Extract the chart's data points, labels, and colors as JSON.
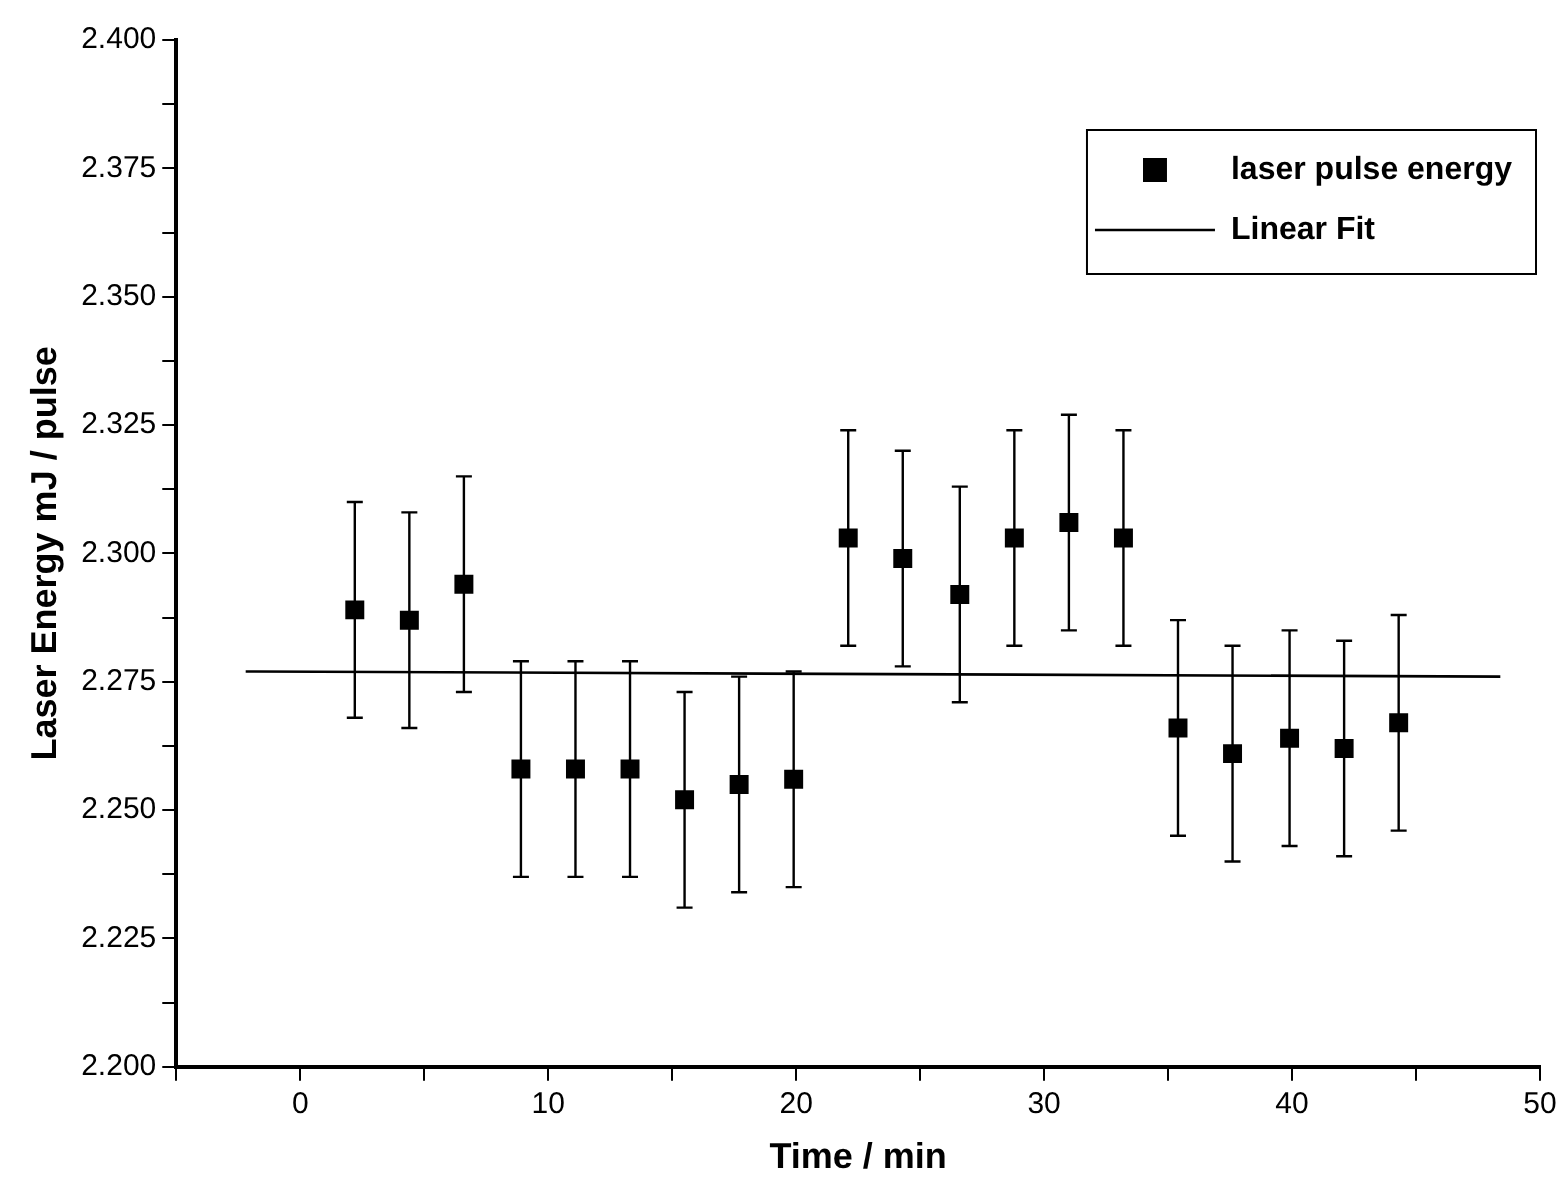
{
  "chart_data": {
    "type": "scatter",
    "xlabel": "Time / min",
    "ylabel": "Laser Energy mJ / pulse",
    "xlim": [
      -5,
      50
    ],
    "xticks": [
      {
        "value": -5,
        "label": null
      },
      0,
      {
        "value": 5,
        "label": null
      },
      10,
      {
        "value": 15,
        "label": null
      },
      20,
      {
        "value": 25,
        "label": null
      },
      30,
      {
        "value": 35,
        "label": null
      },
      40,
      {
        "value": 45,
        "label": null
      },
      50
    ],
    "ylim": [
      2.2,
      2.4
    ],
    "yticks": [
      {
        "value": 2.2,
        "label": "2.200"
      },
      {
        "value": 2.2125,
        "label": null
      },
      {
        "value": 2.225,
        "label": "2.225"
      },
      {
        "value": 2.2375,
        "label": null
      },
      {
        "value": 2.25,
        "label": "2.250"
      },
      {
        "value": 2.2625,
        "label": null
      },
      {
        "value": 2.275,
        "label": "2.275"
      },
      {
        "value": 2.2875,
        "label": null
      },
      {
        "value": 2.3,
        "label": "2.300"
      },
      {
        "value": 2.3125,
        "label": null
      },
      {
        "value": 2.325,
        "label": "2.325"
      },
      {
        "value": 2.3375,
        "label": null
      },
      {
        "value": 2.35,
        "label": "2.350"
      },
      {
        "value": 2.3625,
        "label": null
      },
      {
        "value": 2.375,
        "label": "2.375"
      },
      {
        "value": 2.3875,
        "label": null
      },
      {
        "value": 2.4,
        "label": "2.400"
      }
    ],
    "grid": false,
    "legend": "top right",
    "marker": "square",
    "series": [
      {
        "name": "laser pulse energy",
        "color": "#000000",
        "x": [
          2.2,
          4.4,
          6.6,
          8.9,
          11.1,
          13.3,
          15.5,
          17.7,
          19.9,
          22.1,
          24.3,
          26.6,
          28.8,
          31.0,
          33.2,
          35.4,
          37.6,
          39.9,
          42.1,
          44.3
        ],
        "values": [
          2.289,
          2.287,
          2.294,
          2.258,
          2.258,
          2.258,
          2.252,
          2.255,
          2.256,
          2.303,
          2.299,
          2.292,
          2.303,
          2.306,
          2.303,
          2.266,
          2.261,
          2.264,
          2.262,
          2.267
        ],
        "errors": [
          0.021,
          0.021,
          0.021,
          0.021,
          0.021,
          0.021,
          0.021,
          0.021,
          0.021,
          0.021,
          0.021,
          0.021,
          0.021,
          0.021,
          0.021,
          0.021,
          0.021,
          0.021,
          0.021,
          0.021
        ]
      },
      {
        "name": "Linear Fit",
        "type": "line",
        "color": "#000000",
        "line_style": "solid",
        "marker": "none",
        "x": [
          -2.2,
          48.4
        ],
        "values": [
          2.277,
          2.276
        ]
      }
    ]
  }
}
